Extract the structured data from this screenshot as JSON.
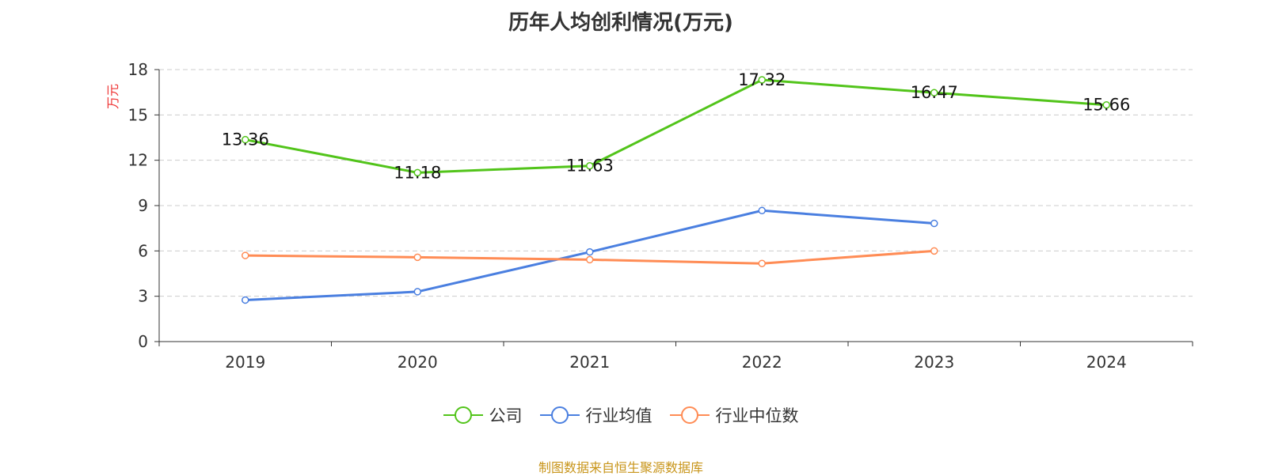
{
  "title": "历年人均创利情况(万元)",
  "source": "制图数据来自恒生聚源数据库",
  "chart_data": {
    "type": "line",
    "title": "历年人均创利情况(万元)",
    "ylabel": "万元",
    "ylim": [
      0,
      18
    ],
    "yticks": [
      0,
      3,
      6,
      9,
      12,
      15,
      18
    ],
    "grid": true,
    "legend_position": "bottom",
    "categories": [
      "2019",
      "2020",
      "2021",
      "2022",
      "2023",
      "2024"
    ],
    "series": [
      {
        "name": "公司",
        "color": "#52c41a",
        "values": [
          13.36,
          11.18,
          11.63,
          17.32,
          16.47,
          15.66
        ],
        "labels": [
          "13.36",
          "11.18",
          "11.63",
          "17.32",
          "16.47",
          "15.66"
        ]
      },
      {
        "name": "行业均值",
        "color": "#4a7fe0",
        "values": [
          2.75,
          3.3,
          5.93,
          8.67,
          7.82,
          null
        ]
      },
      {
        "name": "行业中位数",
        "color": "#ff8c55",
        "values": [
          5.7,
          5.58,
          5.42,
          5.17,
          6.0,
          null
        ]
      }
    ]
  }
}
